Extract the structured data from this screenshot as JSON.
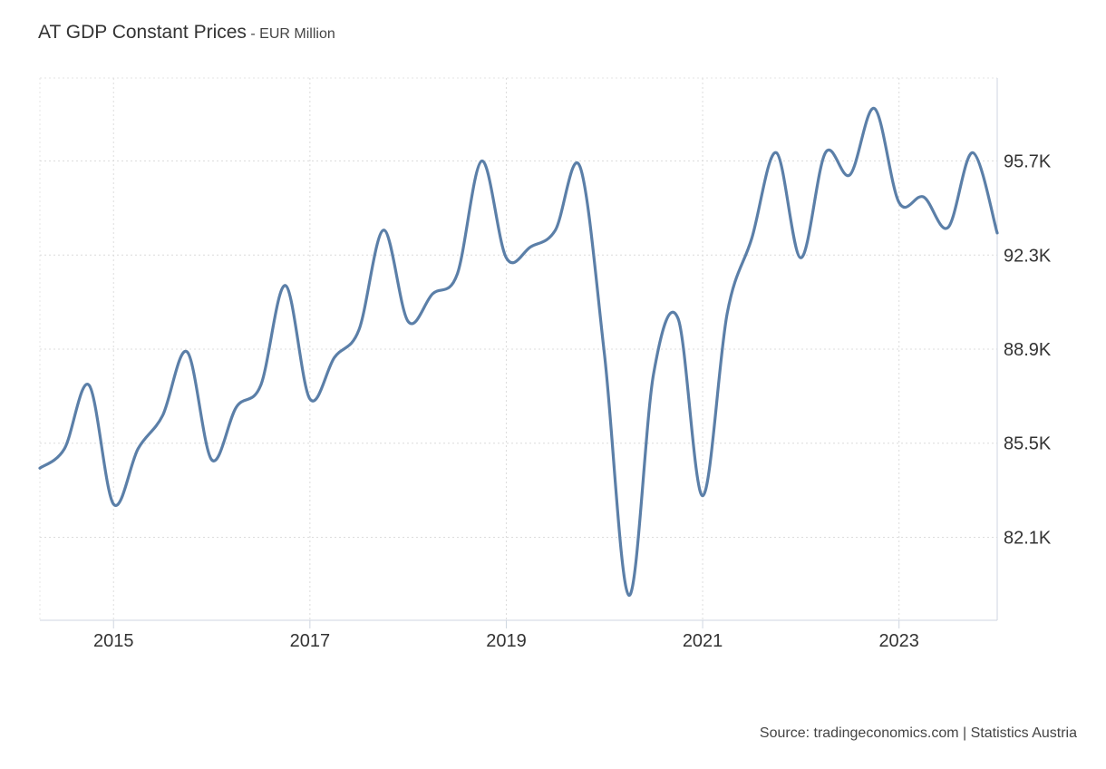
{
  "chart_data": {
    "type": "line",
    "title": "AT GDP Constant Prices",
    "subtitle": "- EUR Million",
    "source": "Source: tradingeconomics.com | Statistics Austria",
    "xlabel": "",
    "ylabel": "",
    "x_ticks": [
      2015,
      2017,
      2019,
      2021,
      2023
    ],
    "x_tick_labels": [
      "2015",
      "2017",
      "2019",
      "2021",
      "2023"
    ],
    "y_ticks": [
      82.1,
      85.5,
      88.9,
      92.3,
      95.7
    ],
    "y_tick_labels": [
      "82.1K",
      "85.5K",
      "88.9K",
      "92.3K",
      "95.7K"
    ],
    "xlim": [
      2014.25,
      2024.0
    ],
    "ylim": [
      79.1,
      98.7
    ],
    "y_axis_position": "right",
    "grid": true,
    "series": [
      {
        "color": "#5b7fa8",
        "x": [
          2014.25,
          2014.5,
          2014.75,
          2015.0,
          2015.25,
          2015.5,
          2015.75,
          2016.0,
          2016.25,
          2016.5,
          2016.75,
          2017.0,
          2017.25,
          2017.5,
          2017.75,
          2018.0,
          2018.25,
          2018.5,
          2018.75,
          2019.0,
          2019.25,
          2019.5,
          2019.75,
          2020.0,
          2020.25,
          2020.5,
          2020.75,
          2021.0,
          2021.25,
          2021.5,
          2021.75,
          2022.0,
          2022.25,
          2022.5,
          2022.75,
          2023.0,
          2023.25,
          2023.5,
          2023.75,
          2024.0
        ],
        "values": [
          84.6,
          85.3,
          87.6,
          83.3,
          85.3,
          86.5,
          88.8,
          84.9,
          86.8,
          87.6,
          91.2,
          87.1,
          88.6,
          89.6,
          93.2,
          89.9,
          90.9,
          91.6,
          95.7,
          92.2,
          92.6,
          93.2,
          95.5,
          88.7,
          80.0,
          88.0,
          90.0,
          83.6,
          90.2,
          92.9,
          96.0,
          92.2,
          96.0,
          95.2,
          97.6,
          94.2,
          94.4,
          93.3,
          96.0,
          93.1
        ]
      }
    ]
  }
}
